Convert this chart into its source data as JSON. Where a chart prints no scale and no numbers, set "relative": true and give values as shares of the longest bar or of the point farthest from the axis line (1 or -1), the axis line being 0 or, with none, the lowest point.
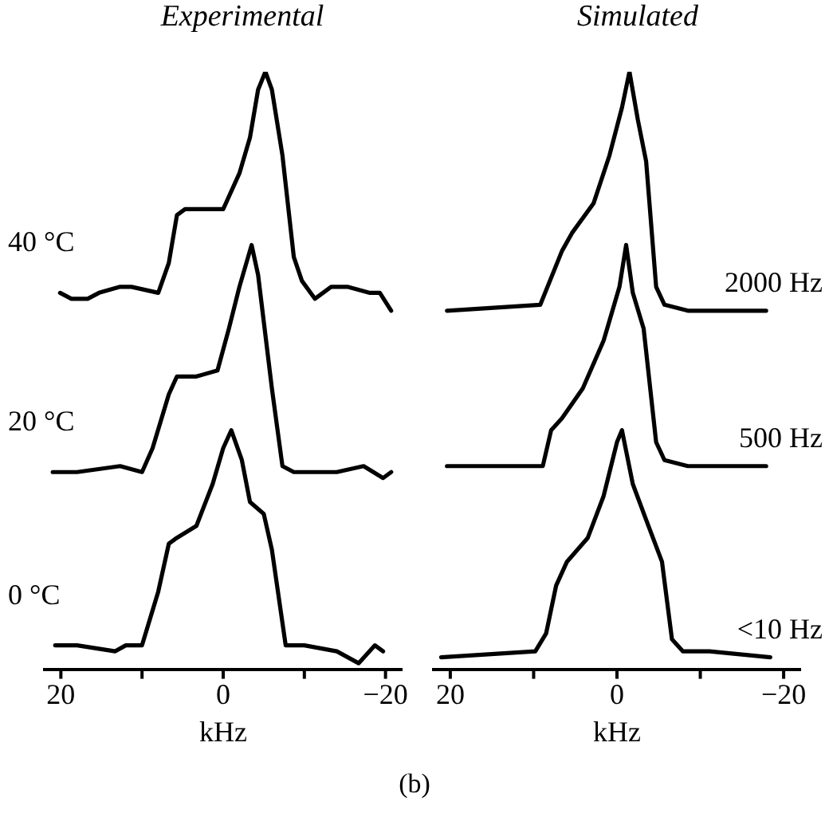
{
  "chart_data": [
    {
      "type": "line",
      "title": "Experimental",
      "xlabel": "kHz",
      "relative": true,
      "xlim": [
        22,
        -22
      ],
      "xticks": [
        {
          "value": 20,
          "label": "20"
        },
        {
          "value": 10,
          "label": null
        },
        {
          "value": 0,
          "label": "0"
        },
        {
          "value": -10,
          "label": null
        },
        {
          "value": -20,
          "label": "−20"
        }
      ],
      "tick_labels": "x",
      "marker": "none",
      "line_style": "solid",
      "legend": false,
      "annotations": [
        "(b)"
      ],
      "series": [
        {
          "name": "40 °C",
          "color": "#000000",
          "x": [
            20.1,
            18.7,
            16.7,
            15.3,
            12.7,
            11.3,
            8.0,
            6.7,
            5.7,
            4.7,
            2.0,
            0,
            -2.0,
            -3.3,
            -4.3,
            -5.2,
            -6.0,
            -7.3,
            -8.7,
            -9.7,
            -11.3,
            -13.3,
            -15.3,
            -18.0,
            -19.3,
            -20.7
          ],
          "values": [
            0.63,
            0.62,
            0.62,
            0.63,
            0.64,
            0.64,
            0.63,
            0.68,
            0.76,
            0.77,
            0.77,
            0.77,
            0.83,
            0.89,
            0.97,
            1,
            0.97,
            0.86,
            0.69,
            0.65,
            0.62,
            0.64,
            0.64,
            0.63,
            0.63,
            0.6
          ]
        },
        {
          "name": "20 °C",
          "color": "#000000",
          "x": [
            21.0,
            18.0,
            12.7,
            10.0,
            8.7,
            6.7,
            5.7,
            3.3,
            0.7,
            -0.7,
            -2.0,
            -3.5,
            -4.3,
            -6.0,
            -7.3,
            -8.7,
            -14.0,
            -17.3,
            -19.7,
            -20.7
          ],
          "values": [
            0.33,
            0.33,
            0.34,
            0.33,
            0.37,
            0.46,
            0.49,
            0.49,
            0.5,
            0.57,
            0.64,
            0.71,
            0.66,
            0.47,
            0.34,
            0.33,
            0.33,
            0.34,
            0.32,
            0.33
          ]
        },
        {
          "name": "0 °C",
          "color": "#000000",
          "x": [
            20.7,
            18.0,
            13.3,
            12.0,
            10.0,
            8.0,
            6.7,
            5.7,
            3.3,
            1.3,
            0,
            -1.0,
            -2.3,
            -3.3,
            -5.0,
            -6.0,
            -7.7,
            -10.0,
            -14.0,
            -16.7,
            -18.7,
            -19.7
          ],
          "values": [
            0.04,
            0.04,
            0.03,
            0.04,
            0.04,
            0.13,
            0.21,
            0.22,
            0.24,
            0.31,
            0.37,
            0.4,
            0.35,
            0.28,
            0.26,
            0.2,
            0.04,
            0.04,
            0.03,
            0.01,
            0.04,
            0.03
          ]
        }
      ]
    },
    {
      "type": "line",
      "title": "Simulated",
      "xlabel": "kHz",
      "relative": true,
      "xlim": [
        22,
        -22
      ],
      "xticks": [
        {
          "value": 20,
          "label": "20"
        },
        {
          "value": 10,
          "label": null
        },
        {
          "value": 0,
          "label": "0"
        },
        {
          "value": -10,
          "label": null
        },
        {
          "value": -20,
          "label": "−20"
        }
      ],
      "tick_labels": "x",
      "marker": "none",
      "line_style": "solid",
      "legend": false,
      "series": [
        {
          "name": "2000 Hz",
          "color": "#000000",
          "x": [
            20.4,
            9.2,
            6.6,
            5.4,
            2.8,
            0.9,
            -0.6,
            -1.5,
            -2.5,
            -3.5,
            -4.7,
            -5.7,
            -8.5,
            -17.9
          ],
          "values": [
            0.6,
            0.61,
            0.7,
            0.73,
            0.78,
            0.86,
            0.94,
            1,
            0.92,
            0.85,
            0.64,
            0.61,
            0.6,
            0.6
          ]
        },
        {
          "name": "500 Hz",
          "color": "#000000",
          "x": [
            20.4,
            8.9,
            7.9,
            6.6,
            4.1,
            1.6,
            -0.3,
            -1.1,
            -1.9,
            -3.2,
            -4.7,
            -5.7,
            -8.5,
            -17.9
          ],
          "values": [
            0.34,
            0.34,
            0.4,
            0.42,
            0.47,
            0.55,
            0.64,
            0.71,
            0.63,
            0.57,
            0.38,
            0.35,
            0.34,
            0.34
          ]
        },
        {
          "name": "<10 Hz",
          "color": "#000000",
          "x": [
            21.1,
            9.8,
            8.5,
            7.3,
            6.0,
            3.5,
            1.6,
            0,
            -0.6,
            -1.9,
            -3.5,
            -5.4,
            -6.6,
            -7.9,
            -11.1,
            -18.4
          ],
          "values": [
            0.02,
            0.03,
            0.06,
            0.14,
            0.18,
            0.22,
            0.29,
            0.38,
            0.4,
            0.31,
            0.25,
            0.18,
            0.05,
            0.03,
            0.03,
            0.02
          ]
        }
      ]
    }
  ]
}
